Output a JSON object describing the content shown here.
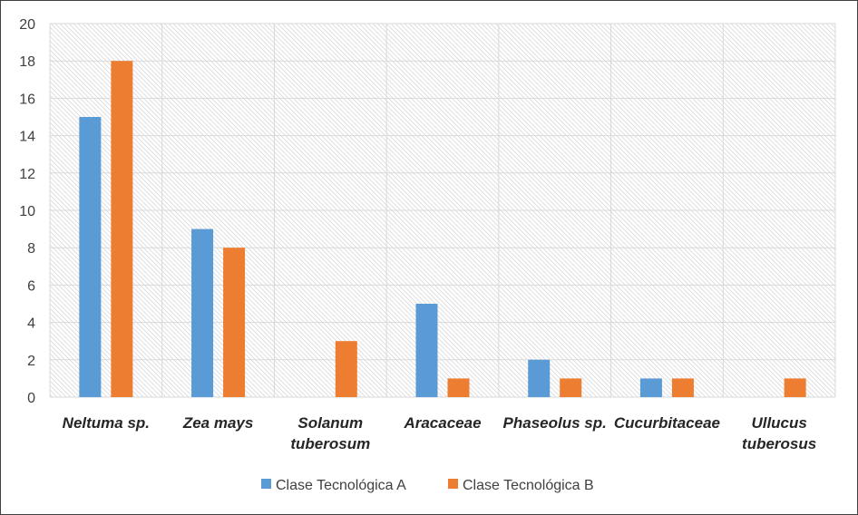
{
  "chart_data": {
    "type": "bar",
    "title": "",
    "xlabel": "",
    "ylabel": "",
    "ylim": [
      0,
      20
    ],
    "yticks": [
      0,
      2,
      4,
      6,
      8,
      10,
      12,
      14,
      16,
      18,
      20
    ],
    "grid": true,
    "legend_position": "bottom",
    "categories": [
      [
        "Neltuma sp."
      ],
      [
        "Zea mays"
      ],
      [
        "Solanum",
        "tuberosum"
      ],
      [
        "Aracaceae"
      ],
      [
        "Phaseolus sp."
      ],
      [
        "Cucurbitaceae"
      ],
      [
        "Ullucus",
        "tuberosus"
      ]
    ],
    "series": [
      {
        "name": "Clase Tecnológica A",
        "color": "#5B9BD5",
        "values": [
          15,
          9,
          0,
          5,
          2,
          1,
          0
        ]
      },
      {
        "name": "Clase Tecnológica B",
        "color": "#ED7D31",
        "values": [
          18,
          8,
          3,
          1,
          1,
          1,
          1
        ]
      }
    ]
  }
}
